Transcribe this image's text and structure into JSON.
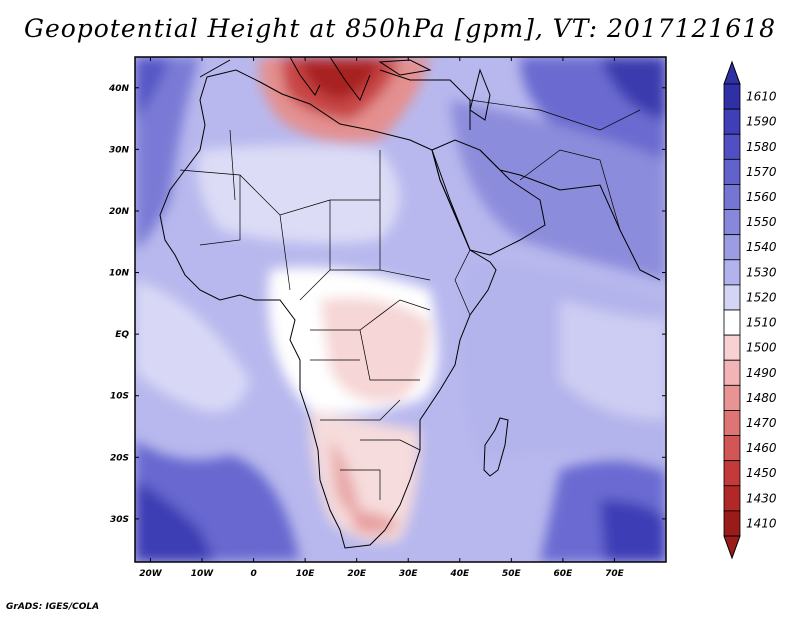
{
  "title": "Geopotential Height at 850hPa [gpm], VT: 2017121618",
  "credit": "GrADS: IGES/COLA",
  "map": {
    "region": "Africa",
    "lon_range": [
      -23,
      80
    ],
    "lat_range": [
      -37,
      45
    ],
    "lat_labels": [
      {
        "value": 40,
        "text": "40N"
      },
      {
        "value": 30,
        "text": "30N"
      },
      {
        "value": 20,
        "text": "20N"
      },
      {
        "value": 10,
        "text": "10N"
      },
      {
        "value": 0,
        "text": "EQ"
      },
      {
        "value": -10,
        "text": "10S"
      },
      {
        "value": -20,
        "text": "20S"
      },
      {
        "value": -30,
        "text": "30S"
      }
    ],
    "lon_labels": [
      {
        "value": -20,
        "text": "20W"
      },
      {
        "value": -10,
        "text": "10W"
      },
      {
        "value": 0,
        "text": "0"
      },
      {
        "value": 10,
        "text": "10E"
      },
      {
        "value": 20,
        "text": "20E"
      },
      {
        "value": 30,
        "text": "30E"
      },
      {
        "value": 40,
        "text": "40E"
      },
      {
        "value": 50,
        "text": "50E"
      },
      {
        "value": 60,
        "text": "60E"
      },
      {
        "value": 70,
        "text": "70E"
      }
    ]
  },
  "colorbar": {
    "levels": [
      "1610",
      "1590",
      "1580",
      "1570",
      "1560",
      "1550",
      "1540",
      "1530",
      "1520",
      "1510",
      "1500",
      "1490",
      "1480",
      "1470",
      "1460",
      "1450",
      "1430",
      "1410"
    ],
    "colors": [
      "#2f2fa6",
      "#3f3fb8",
      "#5050c4",
      "#6262cc",
      "#7575d4",
      "#8787dc",
      "#9c9ce4",
      "#b2b2ec",
      "#d4d4f5",
      "#ffffff",
      "#f8d2d2",
      "#f2b4b4",
      "#e89494",
      "#df7474",
      "#d35656",
      "#c43a3a",
      "#b22828",
      "#9b1b1b"
    ]
  }
}
